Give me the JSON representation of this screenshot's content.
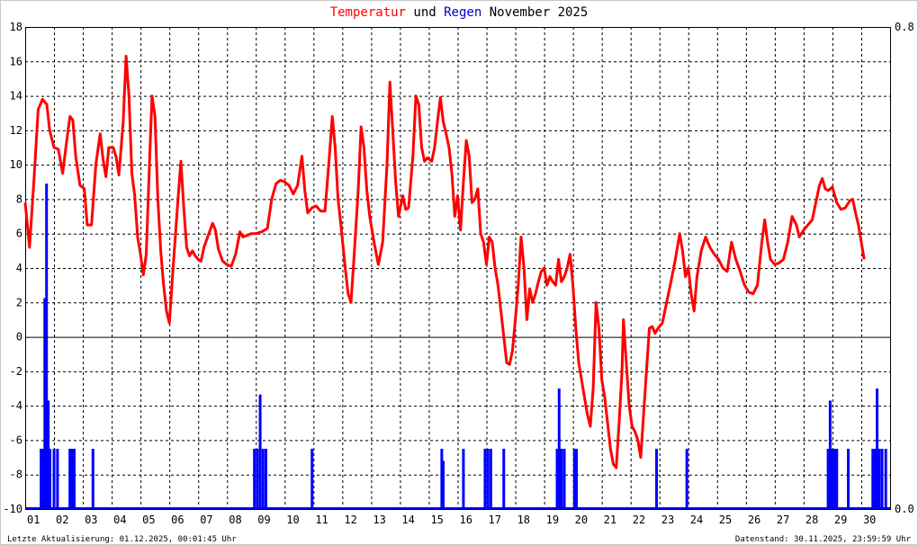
{
  "chart_data": {
    "type": "line",
    "title_parts": [
      {
        "text": "Temperatur",
        "color": "#ff0000"
      },
      {
        "text": "und",
        "color": "#000000"
      },
      {
        "text": "Regen",
        "color": "#0000c0"
      },
      {
        "text": "November 2025",
        "color": "#000000"
      }
    ],
    "y_left": {
      "range": [
        -10,
        18
      ],
      "ticks": [
        "18",
        "16",
        "14",
        "12",
        "10",
        "8",
        "6",
        "4",
        "2",
        "0",
        "-2",
        "-4",
        "-6",
        "-8",
        "-10"
      ]
    },
    "y_right": {
      "range": [
        0,
        0.8
      ],
      "ticks": [
        "0.8",
        "0.0"
      ]
    },
    "x_ticks": [
      "01",
      "02",
      "03",
      "04",
      "05",
      "06",
      "07",
      "08",
      "09",
      "10",
      "11",
      "12",
      "13",
      "14",
      "15",
      "16",
      "17",
      "18",
      "19",
      "20",
      "21",
      "22",
      "23",
      "24",
      "25",
      "26",
      "27",
      "28",
      "29",
      "30"
    ],
    "x_range_days": [
      1,
      31
    ],
    "grid": true,
    "series": [
      {
        "name": "Temperatur",
        "color": "#ff0000",
        "points": [
          [
            1.0,
            7.8
          ],
          [
            1.15,
            5.2
          ],
          [
            1.3,
            9.0
          ],
          [
            1.45,
            13.2
          ],
          [
            1.6,
            13.8
          ],
          [
            1.75,
            13.5
          ],
          [
            1.85,
            12.0
          ],
          [
            2.0,
            11.0
          ],
          [
            2.15,
            10.9
          ],
          [
            2.3,
            9.5
          ],
          [
            2.45,
            11.5
          ],
          [
            2.55,
            12.8
          ],
          [
            2.65,
            12.6
          ],
          [
            2.75,
            10.5
          ],
          [
            2.9,
            8.8
          ],
          [
            3.05,
            8.6
          ],
          [
            3.15,
            6.5
          ],
          [
            3.3,
            6.5
          ],
          [
            3.45,
            10.0
          ],
          [
            3.6,
            11.8
          ],
          [
            3.7,
            10.3
          ],
          [
            3.8,
            9.3
          ],
          [
            3.9,
            11.0
          ],
          [
            4.05,
            11.0
          ],
          [
            4.15,
            10.5
          ],
          [
            4.25,
            9.4
          ],
          [
            4.4,
            12.5
          ],
          [
            4.5,
            16.3
          ],
          [
            4.6,
            14.0
          ],
          [
            4.7,
            9.5
          ],
          [
            4.8,
            8.2
          ],
          [
            4.9,
            5.8
          ],
          [
            5.0,
            4.8
          ],
          [
            5.1,
            3.6
          ],
          [
            5.2,
            4.8
          ],
          [
            5.3,
            9.5
          ],
          [
            5.4,
            14.0
          ],
          [
            5.5,
            12.8
          ],
          [
            5.6,
            8.0
          ],
          [
            5.7,
            5.0
          ],
          [
            5.8,
            3.0
          ],
          [
            5.9,
            1.5
          ],
          [
            6.0,
            0.8
          ],
          [
            6.15,
            4.5
          ],
          [
            6.3,
            8.0
          ],
          [
            6.4,
            10.2
          ],
          [
            6.5,
            7.5
          ],
          [
            6.6,
            5.2
          ],
          [
            6.7,
            4.7
          ],
          [
            6.8,
            5.0
          ],
          [
            6.9,
            4.7
          ],
          [
            7.0,
            4.5
          ],
          [
            7.1,
            4.4
          ],
          [
            7.2,
            5.2
          ],
          [
            7.35,
            5.9
          ],
          [
            7.5,
            6.6
          ],
          [
            7.6,
            6.2
          ],
          [
            7.7,
            5.1
          ],
          [
            7.85,
            4.4
          ],
          [
            8.0,
            4.2
          ],
          [
            8.15,
            4.1
          ],
          [
            8.3,
            4.8
          ],
          [
            8.45,
            6.1
          ],
          [
            8.55,
            5.8
          ],
          [
            8.7,
            5.9
          ],
          [
            8.85,
            6.0
          ],
          [
            9.0,
            6.0
          ],
          [
            9.2,
            6.1
          ],
          [
            9.4,
            6.3
          ],
          [
            9.55,
            8.0
          ],
          [
            9.7,
            8.9
          ],
          [
            9.85,
            9.1
          ],
          [
            10.0,
            9.0
          ],
          [
            10.15,
            8.8
          ],
          [
            10.3,
            8.3
          ],
          [
            10.45,
            8.8
          ],
          [
            10.6,
            10.5
          ],
          [
            10.7,
            8.5
          ],
          [
            10.8,
            7.2
          ],
          [
            10.95,
            7.5
          ],
          [
            11.1,
            7.6
          ],
          [
            11.25,
            7.3
          ],
          [
            11.4,
            7.3
          ],
          [
            11.55,
            10.5
          ],
          [
            11.65,
            12.8
          ],
          [
            11.75,
            11.0
          ],
          [
            11.85,
            8.0
          ],
          [
            11.95,
            6.5
          ],
          [
            12.1,
            4.0
          ],
          [
            12.2,
            2.5
          ],
          [
            12.3,
            2.0
          ],
          [
            12.4,
            4.5
          ],
          [
            12.55,
            8.5
          ],
          [
            12.65,
            12.2
          ],
          [
            12.75,
            11.0
          ],
          [
            12.85,
            8.5
          ],
          [
            12.95,
            7.0
          ],
          [
            13.1,
            5.5
          ],
          [
            13.25,
            4.2
          ],
          [
            13.4,
            5.5
          ],
          [
            13.55,
            10.0
          ],
          [
            13.65,
            14.8
          ],
          [
            13.75,
            12.0
          ],
          [
            13.85,
            9.0
          ],
          [
            13.95,
            7.0
          ],
          [
            14.1,
            8.2
          ],
          [
            14.2,
            7.4
          ],
          [
            14.3,
            7.5
          ],
          [
            14.45,
            10.5
          ],
          [
            14.55,
            14.0
          ],
          [
            14.65,
            13.5
          ],
          [
            14.75,
            11.0
          ],
          [
            14.85,
            10.2
          ],
          [
            14.95,
            10.4
          ],
          [
            15.1,
            10.2
          ],
          [
            15.2,
            11.0
          ],
          [
            15.3,
            12.5
          ],
          [
            15.4,
            13.9
          ],
          [
            15.5,
            12.5
          ],
          [
            15.6,
            11.8
          ],
          [
            15.7,
            11.0
          ],
          [
            15.8,
            9.5
          ],
          [
            15.9,
            7.0
          ],
          [
            16.0,
            8.2
          ],
          [
            16.1,
            6.2
          ],
          [
            16.2,
            9.0
          ],
          [
            16.3,
            11.4
          ],
          [
            16.4,
            10.5
          ],
          [
            16.5,
            7.8
          ],
          [
            16.6,
            8.0
          ],
          [
            16.7,
            8.6
          ],
          [
            16.8,
            6.0
          ],
          [
            16.9,
            5.5
          ],
          [
            17.0,
            4.2
          ],
          [
            17.1,
            5.8
          ],
          [
            17.2,
            5.5
          ],
          [
            17.3,
            4.0
          ],
          [
            17.4,
            3.0
          ],
          [
            17.5,
            1.5
          ],
          [
            17.6,
            0.0
          ],
          [
            17.7,
            -1.5
          ],
          [
            17.8,
            -1.6
          ],
          [
            17.9,
            -0.8
          ],
          [
            18.0,
            1.0
          ],
          [
            18.1,
            3.0
          ],
          [
            18.2,
            5.8
          ],
          [
            18.3,
            4.0
          ],
          [
            18.4,
            1.0
          ],
          [
            18.5,
            2.8
          ],
          [
            18.6,
            2.0
          ],
          [
            18.7,
            2.5
          ],
          [
            18.8,
            3.2
          ],
          [
            18.9,
            3.8
          ],
          [
            19.0,
            4.0
          ],
          [
            19.1,
            3.0
          ],
          [
            19.2,
            3.5
          ],
          [
            19.3,
            3.2
          ],
          [
            19.4,
            3.0
          ],
          [
            19.5,
            4.5
          ],
          [
            19.6,
            3.2
          ],
          [
            19.7,
            3.5
          ],
          [
            19.8,
            4.0
          ],
          [
            19.9,
            4.8
          ],
          [
            20.0,
            3.0
          ],
          [
            20.1,
            0.5
          ],
          [
            20.2,
            -1.5
          ],
          [
            20.3,
            -2.5
          ],
          [
            20.4,
            -3.5
          ],
          [
            20.5,
            -4.5
          ],
          [
            20.6,
            -5.2
          ],
          [
            20.7,
            -3.0
          ],
          [
            20.8,
            2.0
          ],
          [
            20.9,
            0.5
          ],
          [
            21.0,
            -2.5
          ],
          [
            21.1,
            -3.5
          ],
          [
            21.2,
            -5.0
          ],
          [
            21.3,
            -6.5
          ],
          [
            21.4,
            -7.4
          ],
          [
            21.5,
            -7.6
          ],
          [
            21.6,
            -5.0
          ],
          [
            21.7,
            -2.0
          ],
          [
            21.75,
            1.0
          ],
          [
            21.85,
            -1.5
          ],
          [
            21.95,
            -4.0
          ],
          [
            22.05,
            -5.2
          ],
          [
            22.15,
            -5.5
          ],
          [
            22.25,
            -6.0
          ],
          [
            22.35,
            -7.0
          ],
          [
            22.45,
            -4.5
          ],
          [
            22.55,
            -2.0
          ],
          [
            22.65,
            0.5
          ],
          [
            22.75,
            0.6
          ],
          [
            22.85,
            0.2
          ],
          [
            22.95,
            0.5
          ],
          [
            23.1,
            0.8
          ],
          [
            23.25,
            2.0
          ],
          [
            23.4,
            3.2
          ],
          [
            23.55,
            4.5
          ],
          [
            23.7,
            6.0
          ],
          [
            23.8,
            5.0
          ],
          [
            23.9,
            3.5
          ],
          [
            24.0,
            4.0
          ],
          [
            24.1,
            2.5
          ],
          [
            24.2,
            1.5
          ],
          [
            24.3,
            3.5
          ],
          [
            24.45,
            5.0
          ],
          [
            24.6,
            5.8
          ],
          [
            24.75,
            5.2
          ],
          [
            24.9,
            4.8
          ],
          [
            25.05,
            4.5
          ],
          [
            25.2,
            4.0
          ],
          [
            25.35,
            3.8
          ],
          [
            25.5,
            5.5
          ],
          [
            25.65,
            4.5
          ],
          [
            25.8,
            3.8
          ],
          [
            25.95,
            3.0
          ],
          [
            26.1,
            2.6
          ],
          [
            26.25,
            2.5
          ],
          [
            26.4,
            3.0
          ],
          [
            26.55,
            5.5
          ],
          [
            26.65,
            6.8
          ],
          [
            26.75,
            5.5
          ],
          [
            26.85,
            4.5
          ],
          [
            27.0,
            4.2
          ],
          [
            27.15,
            4.3
          ],
          [
            27.3,
            4.5
          ],
          [
            27.45,
            5.5
          ],
          [
            27.6,
            7.0
          ],
          [
            27.75,
            6.5
          ],
          [
            27.85,
            5.8
          ],
          [
            28.0,
            6.2
          ],
          [
            28.15,
            6.5
          ],
          [
            28.3,
            6.8
          ],
          [
            28.45,
            8.0
          ],
          [
            28.55,
            8.8
          ],
          [
            28.65,
            9.2
          ],
          [
            28.75,
            8.6
          ],
          [
            28.85,
            8.5
          ],
          [
            29.0,
            8.7
          ],
          [
            29.15,
            7.8
          ],
          [
            29.3,
            7.4
          ],
          [
            29.45,
            7.5
          ],
          [
            29.6,
            7.9
          ],
          [
            29.7,
            8.0
          ],
          [
            29.8,
            7.2
          ],
          [
            29.9,
            6.5
          ],
          [
            30.0,
            5.5
          ],
          [
            30.1,
            4.5
          ]
        ]
      },
      {
        "name": "Regen",
        "color": "#0000ff",
        "bars": [
          [
            1.55,
            0.1
          ],
          [
            1.62,
            0.1
          ],
          [
            1.68,
            0.35
          ],
          [
            1.74,
            0.54
          ],
          [
            1.8,
            0.18
          ],
          [
            1.86,
            0.1
          ],
          [
            2.0,
            0.1
          ],
          [
            2.12,
            0.1
          ],
          [
            2.55,
            0.1
          ],
          [
            2.62,
            0.1
          ],
          [
            2.7,
            0.1
          ],
          [
            3.35,
            0.1
          ],
          [
            8.95,
            0.1
          ],
          [
            9.05,
            0.1
          ],
          [
            9.15,
            0.19
          ],
          [
            9.25,
            0.1
          ],
          [
            9.35,
            0.1
          ],
          [
            10.95,
            0.1
          ],
          [
            15.45,
            0.1
          ],
          [
            15.5,
            0.08
          ],
          [
            16.2,
            0.1
          ],
          [
            16.95,
            0.1
          ],
          [
            17.05,
            0.1
          ],
          [
            17.15,
            0.1
          ],
          [
            17.6,
            0.1
          ],
          [
            19.45,
            0.1
          ],
          [
            19.52,
            0.2
          ],
          [
            19.6,
            0.1
          ],
          [
            19.7,
            0.1
          ],
          [
            20.05,
            0.1
          ],
          [
            20.12,
            0.1
          ],
          [
            22.9,
            0.1
          ],
          [
            23.95,
            0.1
          ],
          [
            28.85,
            0.1
          ],
          [
            28.92,
            0.18
          ],
          [
            29.0,
            0.1
          ],
          [
            29.08,
            0.1
          ],
          [
            29.15,
            0.1
          ],
          [
            29.55,
            0.1
          ],
          [
            30.4,
            0.1
          ],
          [
            30.48,
            0.1
          ],
          [
            30.55,
            0.2
          ],
          [
            30.62,
            0.1
          ],
          [
            30.72,
            0.1
          ],
          [
            30.85,
            0.1
          ]
        ]
      }
    ]
  },
  "footer": {
    "left": "Letzte Aktualisierung: 01.12.2025, 00:01:45 Uhr",
    "right": "Datenstand: 30.11.2025, 23:59:59 Uhr"
  }
}
